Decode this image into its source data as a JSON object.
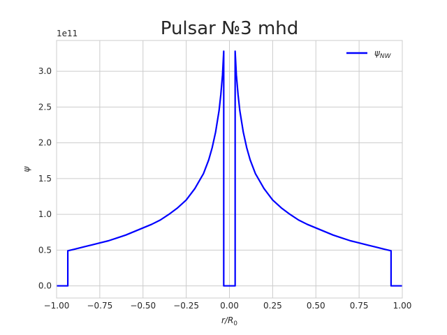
{
  "chart_data": {
    "type": "line",
    "title": "Pulsar №3 mhd",
    "xlabel": "r/R",
    "xlabel_sub": "0",
    "ylabel": "ψ",
    "y_offset_text": "1e11",
    "xlim": [
      -1.0,
      1.0
    ],
    "ylim": [
      -0.17,
      3.43
    ],
    "y_scale_factor": 100000000000.0,
    "x_ticks": [
      -1.0,
      -0.75,
      -0.5,
      -0.25,
      0.0,
      0.25,
      0.5,
      0.75,
      1.0
    ],
    "x_tick_labels": [
      "−1.00",
      "−0.75",
      "−0.50",
      "−0.25",
      "0.00",
      "0.25",
      "0.50",
      "0.75",
      "1.00"
    ],
    "y_ticks": [
      0.0,
      0.5,
      1.0,
      1.5,
      2.0,
      2.5,
      3.0
    ],
    "y_tick_labels": [
      "0.0",
      "0.5",
      "1.0",
      "1.5",
      "2.0",
      "2.5",
      "3.0"
    ],
    "grid": true,
    "legend_position": "top-right",
    "series": [
      {
        "name": "ψ",
        "name_sub": "NW",
        "color": "#0000ff",
        "x": [
          -1.0,
          -0.935,
          -0.935,
          -0.9,
          -0.85,
          -0.8,
          -0.75,
          -0.7,
          -0.65,
          -0.6,
          -0.55,
          -0.5,
          -0.45,
          -0.4,
          -0.35,
          -0.3,
          -0.25,
          -0.2,
          -0.15,
          -0.12,
          -0.1,
          -0.08,
          -0.06,
          -0.05,
          -0.04,
          -0.033,
          -0.033,
          0.033,
          0.033,
          0.04,
          0.05,
          0.06,
          0.08,
          0.1,
          0.12,
          0.15,
          0.2,
          0.25,
          0.3,
          0.35,
          0.4,
          0.45,
          0.5,
          0.55,
          0.6,
          0.65,
          0.7,
          0.75,
          0.8,
          0.85,
          0.9,
          0.935,
          0.935,
          1.0
        ],
        "y": [
          0.0,
          0.0,
          0.49,
          0.51,
          0.54,
          0.57,
          0.6,
          0.63,
          0.67,
          0.71,
          0.76,
          0.81,
          0.86,
          0.92,
          1.0,
          1.09,
          1.2,
          1.36,
          1.57,
          1.76,
          1.93,
          2.15,
          2.45,
          2.67,
          2.95,
          3.28,
          0.0,
          0.0,
          3.28,
          2.95,
          2.67,
          2.45,
          2.15,
          1.93,
          1.76,
          1.57,
          1.36,
          1.2,
          1.09,
          1.0,
          0.92,
          0.86,
          0.81,
          0.76,
          0.71,
          0.67,
          0.63,
          0.6,
          0.57,
          0.54,
          0.51,
          0.49,
          0.0,
          0.0
        ]
      }
    ]
  }
}
